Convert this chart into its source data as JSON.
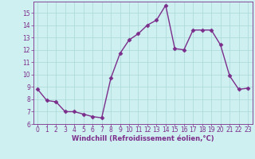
{
  "x": [
    0,
    1,
    2,
    3,
    4,
    5,
    6,
    7,
    8,
    9,
    10,
    11,
    12,
    13,
    14,
    15,
    16,
    17,
    18,
    19,
    20,
    21,
    22,
    23
  ],
  "y": [
    8.8,
    7.9,
    7.8,
    7.0,
    7.0,
    6.8,
    6.6,
    6.5,
    9.7,
    11.7,
    12.8,
    13.3,
    14.0,
    14.4,
    15.6,
    12.1,
    12.0,
    13.6,
    13.6,
    13.6,
    12.4,
    9.9,
    8.8,
    8.9
  ],
  "line_color": "#800080",
  "marker": "D",
  "marker_size": 2.5,
  "linewidth": 1.0,
  "xlabel": "Windchill (Refroidissement éolien,°C)",
  "xlim": [
    -0.5,
    23.5
  ],
  "ylim": [
    6,
    15.9
  ],
  "yticks": [
    6,
    7,
    8,
    9,
    10,
    11,
    12,
    13,
    14,
    15
  ],
  "xticks": [
    0,
    1,
    2,
    3,
    4,
    5,
    6,
    7,
    8,
    9,
    10,
    11,
    12,
    13,
    14,
    15,
    16,
    17,
    18,
    19,
    20,
    21,
    22,
    23
  ],
  "bg_color": "#cff0f0",
  "grid_color": "#aad8d8",
  "line_purple": "#7b2d8b",
  "tick_fontsize": 5.5,
  "xlabel_fontsize": 6.0
}
